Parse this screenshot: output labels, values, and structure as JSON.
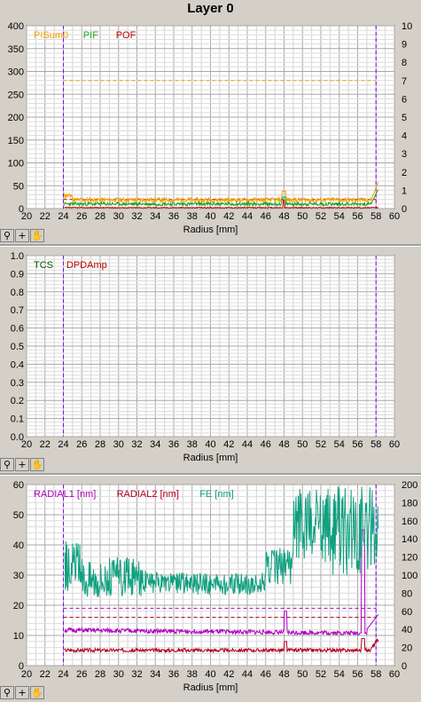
{
  "title": "Layer 0",
  "toolbar": {
    "zoom_icon": "zoom-icon",
    "crosshair_icon": "crosshair-icon",
    "pan_icon": "hand-icon"
  },
  "chart_data": [
    {
      "type": "line",
      "title": "",
      "xlabel": "Radius [mm]",
      "xlim": [
        20,
        60
      ],
      "xticks": [
        20,
        22,
        24,
        26,
        28,
        30,
        32,
        34,
        36,
        38,
        40,
        42,
        44,
        46,
        48,
        50,
        52,
        54,
        56,
        58,
        60
      ],
      "ylim": [
        0,
        400
      ],
      "yticks": [
        0,
        50,
        100,
        150,
        200,
        250,
        300,
        350,
        400
      ],
      "y2lim": [
        0,
        10
      ],
      "y2ticks": [
        0,
        1,
        2,
        3,
        4,
        5,
        6,
        7,
        8,
        9,
        10
      ],
      "grid": true,
      "legend": "top-left",
      "markers": {
        "vlines": [
          24,
          58
        ],
        "color": "#8000ff"
      },
      "series": [
        {
          "name": "PISum0",
          "color": "#f0a000"
        },
        {
          "name": "PIF",
          "color": "#20a020"
        },
        {
          "name": "POF",
          "color": "#c00000"
        }
      ],
      "thresholds": [
        {
          "y": 280,
          "color": "#f0a000"
        },
        {
          "y": 20,
          "color": "#c00000"
        }
      ]
    },
    {
      "type": "line",
      "title": "",
      "xlabel": "Radius [mm]",
      "xlim": [
        20,
        60
      ],
      "xticks": [
        20,
        22,
        24,
        26,
        28,
        30,
        32,
        34,
        36,
        38,
        40,
        42,
        44,
        46,
        48,
        50,
        52,
        54,
        56,
        58,
        60
      ],
      "ylim": [
        0,
        1
      ],
      "yticks": [
        "0.0",
        "0.1",
        "0.2",
        "0.3",
        "0.4",
        "0.5",
        "0.6",
        "0.7",
        "0.8",
        "0.9",
        "1.0"
      ],
      "grid": true,
      "legend": "top-left",
      "markers": {
        "vlines": [
          24,
          58
        ],
        "color": "#8000ff"
      },
      "series": [
        {
          "name": "TCS",
          "color": "#006000"
        },
        {
          "name": "DPDAmp",
          "color": "#c00000"
        }
      ]
    },
    {
      "type": "line",
      "title": "",
      "xlabel": "Radius [mm]",
      "xlim": [
        20,
        60
      ],
      "xticks": [
        20,
        22,
        24,
        26,
        28,
        30,
        32,
        34,
        36,
        38,
        40,
        42,
        44,
        46,
        48,
        50,
        52,
        54,
        56,
        58,
        60
      ],
      "ylim": [
        0,
        60
      ],
      "yticks": [
        0,
        10,
        20,
        30,
        40,
        50,
        60
      ],
      "y2lim": [
        0,
        200
      ],
      "y2ticks": [
        0,
        20,
        40,
        60,
        80,
        100,
        120,
        140,
        160,
        180,
        200
      ],
      "grid": true,
      "legend": "top-left",
      "markers": {
        "vlines": [
          24,
          58
        ],
        "color": "#8000ff"
      },
      "series": [
        {
          "name": "RADIAL1 [nm]",
          "color": "#b000c0"
        },
        {
          "name": "RADIAL2 [nm]",
          "color": "#b00020"
        },
        {
          "name": "FE [nm]",
          "color": "#10a080"
        }
      ],
      "thresholds": [
        {
          "y": 19,
          "color": "#b000c0"
        },
        {
          "y": 16,
          "color": "#b00020"
        }
      ]
    }
  ]
}
